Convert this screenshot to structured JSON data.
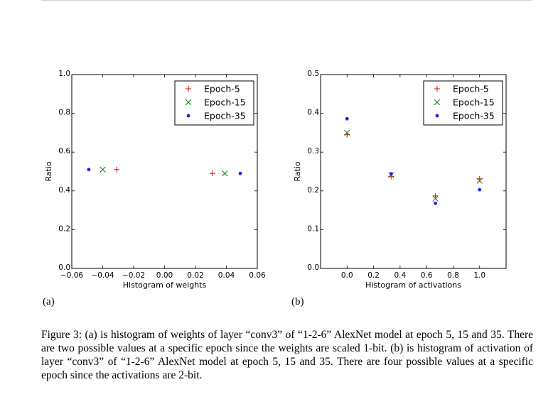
{
  "panels": [
    {
      "label": "(a)",
      "chart_data": {
        "type": "scatter",
        "title": "",
        "xlabel": "Histogram of weights",
        "ylabel": "Ratio",
        "xlim": [
          -0.06,
          0.06
        ],
        "ylim": [
          0.0,
          1.0
        ],
        "xticks": [
          -0.06,
          -0.04,
          -0.02,
          0.0,
          0.02,
          0.04,
          0.06
        ],
        "xtick_labels": [
          "−0.06",
          "−0.04",
          "−0.02",
          "0.00",
          "0.02",
          "0.04",
          "0.06"
        ],
        "yticks": [
          0.0,
          0.2,
          0.4,
          0.6,
          0.8,
          1.0
        ],
        "ytick_labels": [
          "0.0",
          "0.2",
          "0.4",
          "0.6",
          "0.8",
          "1.0"
        ],
        "legend_position": "top-right",
        "series": [
          {
            "name": "Epoch-5",
            "marker": "plus",
            "color": "#e41a1c",
            "points": [
              [
                -0.031,
                0.51
              ],
              [
                0.031,
                0.49
              ]
            ]
          },
          {
            "name": "Epoch-15",
            "marker": "x",
            "color": "#1a8a1a",
            "points": [
              [
                -0.04,
                0.51
              ],
              [
                0.039,
                0.49
              ]
            ]
          },
          {
            "name": "Epoch-35",
            "marker": "dot",
            "color": "#1f1fe0",
            "points": [
              [
                -0.049,
                0.51
              ],
              [
                0.049,
                0.49
              ]
            ]
          }
        ]
      }
    },
    {
      "label": "(b)",
      "chart_data": {
        "type": "scatter",
        "title": "",
        "xlabel": "Histogram of activations",
        "ylabel": "Ratio",
        "xlim": [
          -0.2,
          1.2
        ],
        "ylim": [
          0.0,
          0.5
        ],
        "xticks": [
          0.0,
          0.2,
          0.4,
          0.6,
          0.8,
          1.0
        ],
        "xtick_labels": [
          "0.0",
          "0.2",
          "0.4",
          "0.6",
          "0.8",
          "1.0"
        ],
        "yticks": [
          0.0,
          0.1,
          0.2,
          0.3,
          0.4,
          0.5
        ],
        "ytick_labels": [
          "0.0",
          "0.1",
          "0.2",
          "0.3",
          "0.4",
          "0.5"
        ],
        "legend_position": "top-right",
        "series": [
          {
            "name": "Epoch-5",
            "marker": "plus",
            "color": "#e41a1c",
            "points": [
              [
                0.0,
                0.345
              ],
              [
                0.333,
                0.237
              ],
              [
                0.667,
                0.187
              ],
              [
                1.0,
                0.231
              ]
            ]
          },
          {
            "name": "Epoch-15",
            "marker": "x",
            "color": "#1a8a1a",
            "points": [
              [
                0.0,
                0.35
              ],
              [
                0.333,
                0.241
              ],
              [
                0.667,
                0.18
              ],
              [
                1.0,
                0.226
              ]
            ]
          },
          {
            "name": "Epoch-35",
            "marker": "dot",
            "color": "#1f1fe0",
            "points": [
              [
                0.0,
                0.386
              ],
              [
                0.333,
                0.244
              ],
              [
                0.667,
                0.168
              ],
              [
                1.0,
                0.203
              ]
            ]
          }
        ]
      }
    }
  ],
  "caption": "Figure 3: (a) is histogram of weights of layer “conv3” of “1-2-6” AlexNet model at epoch 5, 15 and 35. There are two possible values at a specific epoch since the weights are scaled 1-bit. (b) is histogram of activation of layer “conv3” of “1-2-6” AlexNet model at epoch 5, 15 and 35. There are four possible values at a specific epoch since the activations are 2-bit."
}
